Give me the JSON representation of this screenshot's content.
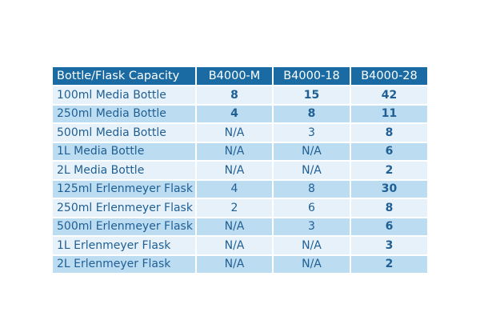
{
  "table": {
    "header": [
      "Bottle/Flask Capacity",
      "B4000-M",
      "B4000-18",
      "B4000-28"
    ],
    "rows": [
      [
        "100ml Media Bottle",
        "8",
        "15",
        "42"
      ],
      [
        "250ml Media Bottle",
        "4",
        "8",
        "11"
      ],
      [
        "500ml Media Bottle",
        "N/A",
        "3",
        "8"
      ],
      [
        "1L Media Bottle",
        "N/A",
        "N/A",
        "6"
      ],
      [
        "2L Media Bottle",
        "N/A",
        "N/A",
        "2"
      ],
      [
        "125ml Erlenmeyer Flask",
        "4",
        "8",
        "30"
      ],
      [
        "250ml Erlenmeyer Flask",
        "2",
        "6",
        "8"
      ],
      [
        "500ml Erlenmeyer Flask",
        "N/A",
        "3",
        "6"
      ],
      [
        "1L Erlenmeyer Flask",
        "N/A",
        "N/A",
        "3"
      ],
      [
        "2L Erlenmeyer Flask",
        "N/A",
        "N/A",
        "2"
      ]
    ]
  }
}
